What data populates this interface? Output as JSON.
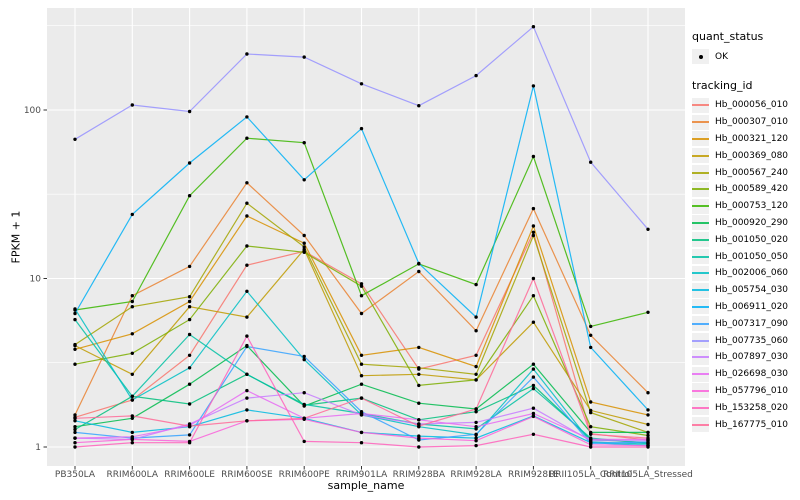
{
  "chart_data": {
    "type": "line",
    "title": "",
    "xlabel": "sample_name",
    "ylabel": "FPKM + 1",
    "y_scale": "log10",
    "grid": true,
    "legend_position": "right",
    "panel_bg": "#EBEBEB",
    "grid_color": "#FFFFFF",
    "tick_label_color": "#4D4D4D",
    "point_color": "#000000",
    "y_ticks": [
      1,
      10,
      100
    ],
    "y_minor": [
      3.1623,
      31.623,
      316.23
    ],
    "ylim": [
      0.77,
      400
    ],
    "categories": [
      "PB350LA",
      "RRIM600LA",
      "RRIM600LE",
      "RRIM600SE",
      "RRIM600PE",
      "RRIM901LA",
      "RRIM928BA",
      "RRIM928LA",
      "RRIM928LE",
      "RRII105LA_Control",
      "RRII105LA_Stressed"
    ],
    "legend": {
      "quant_status_title": "quant_status",
      "quant_status_items": [
        "OK"
      ],
      "tracking_id_title": "tracking_id"
    },
    "series": [
      {
        "name": "Hb_000056_010",
        "color": "#F8766D",
        "values": [
          1.5,
          1.9,
          3.5,
          12,
          14.5,
          9.3,
          2.9,
          3.5,
          18.8,
          1.2,
          1.1
        ]
      },
      {
        "name": "Hb_000307_010",
        "color": "#EA8331",
        "values": [
          1.55,
          7.9,
          11.8,
          37,
          18,
          6.2,
          11,
          4.9,
          26,
          4.6,
          2.1
        ]
      },
      {
        "name": "Hb_000321_120",
        "color": "#D89000",
        "values": [
          3.8,
          4.7,
          7.3,
          23.5,
          16.2,
          3.5,
          3.9,
          3.0,
          20.5,
          1.85,
          1.55
        ]
      },
      {
        "name": "Hb_000369_080",
        "color": "#C09B00",
        "values": [
          4.0,
          2.7,
          6.8,
          5.9,
          14.9,
          2.65,
          2.7,
          2.5,
          5.5,
          1.65,
          1.36
        ]
      },
      {
        "name": "Hb_000567_240",
        "color": "#A3A500",
        "values": [
          4.05,
          6.8,
          7.8,
          28,
          15.4,
          3.1,
          2.95,
          2.7,
          18,
          1.6,
          1.22
        ]
      },
      {
        "name": "Hb_000589_420",
        "color": "#7CAE00",
        "values": [
          3.1,
          3.6,
          5.7,
          15.6,
          14.3,
          9.0,
          2.32,
          2.5,
          7.9,
          1.32,
          1.17
        ]
      },
      {
        "name": "Hb_000753_120",
        "color": "#39B600",
        "values": [
          6.5,
          7.3,
          31,
          68,
          64,
          7.9,
          12.2,
          9.2,
          53,
          5.2,
          6.3
        ]
      },
      {
        "name": "Hb_000920_290",
        "color": "#00BB4E",
        "values": [
          1.32,
          1.48,
          2.36,
          4.0,
          1.75,
          2.36,
          1.82,
          1.68,
          3.1,
          1.22,
          1.22
        ]
      },
      {
        "name": "Hb_001050_020",
        "color": "#00BF7D",
        "values": [
          1.27,
          2.0,
          1.8,
          2.7,
          1.77,
          1.95,
          1.45,
          1.62,
          2.32,
          1.11,
          1.06
        ]
      },
      {
        "name": "Hb_001050_050",
        "color": "#00C1A3",
        "values": [
          5.7,
          2.0,
          4.65,
          2.7,
          1.79,
          1.58,
          1.37,
          1.28,
          2.22,
          1.13,
          1.05
        ]
      },
      {
        "name": "Hb_002006_060",
        "color": "#00BFC4",
        "values": [
          6.6,
          1.9,
          2.95,
          8.4,
          3.3,
          1.55,
          1.32,
          1.18,
          2.9,
          1.07,
          1.04
        ]
      },
      {
        "name": "Hb_005754_030",
        "color": "#00BAE0",
        "values": [
          1.43,
          1.22,
          1.32,
          1.66,
          1.48,
          1.22,
          1.16,
          1.13,
          1.53,
          1.06,
          1.02
        ]
      },
      {
        "name": "Hb_006911_020",
        "color": "#00B0F6",
        "values": [
          6.2,
          24,
          48.5,
          91,
          38.5,
          77.6,
          12.3,
          5.9,
          139,
          3.9,
          1.66
        ]
      },
      {
        "name": "Hb_007317_090",
        "color": "#35A2FF",
        "values": [
          1.22,
          1.13,
          1.18,
          3.95,
          3.45,
          1.62,
          1.1,
          1.19,
          2.6,
          1.05,
          1.07
        ]
      },
      {
        "name": "Hb_007735_060",
        "color": "#9590FF",
        "values": [
          67,
          107,
          98,
          215,
          206,
          143,
          106,
          160,
          312,
          49,
          19.6
        ]
      },
      {
        "name": "Hb_007897_030",
        "color": "#C77CFF",
        "values": [
          1.13,
          1.11,
          1.37,
          1.95,
          2.1,
          1.55,
          1.37,
          1.4,
          1.7,
          1.09,
          1.09
        ]
      },
      {
        "name": "Hb_026698_030",
        "color": "#E76BF3",
        "values": [
          1.13,
          1.15,
          1.34,
          2.16,
          1.48,
          1.58,
          1.45,
          1.32,
          1.58,
          1.11,
          1.11
        ]
      },
      {
        "name": "Hb_057796_010",
        "color": "#FA62DB",
        "values": [
          1.06,
          1.11,
          1.08,
          1.43,
          1.46,
          1.22,
          1.13,
          1.09,
          1.52,
          1.03,
          1.02
        ]
      },
      {
        "name": "Hb_153258_020",
        "color": "#FF62BC",
        "values": [
          1.0,
          1.06,
          1.06,
          4.55,
          1.08,
          1.06,
          1.0,
          1.02,
          1.19,
          1.0,
          1.0
        ]
      },
      {
        "name": "Hb_167775_010",
        "color": "#FF6A98",
        "values": [
          1.48,
          1.53,
          1.33,
          1.43,
          1.48,
          1.95,
          1.33,
          1.68,
          10.0,
          1.19,
          1.13
        ]
      }
    ]
  }
}
